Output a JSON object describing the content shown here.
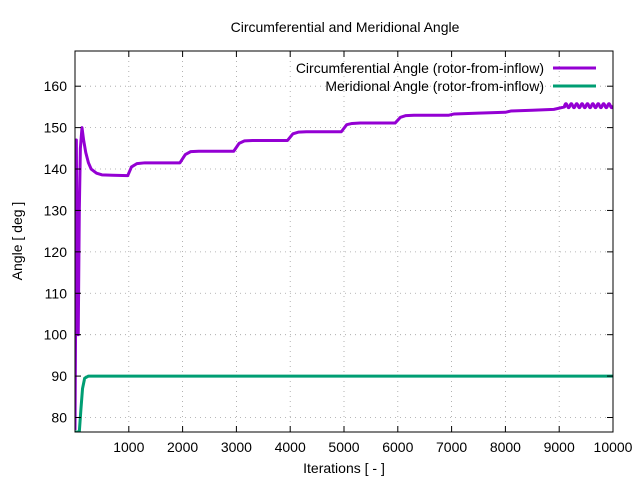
{
  "chart_data": {
    "type": "line",
    "title": "Circumferential and Meridional Angle",
    "xlabel": "Iterations [ - ]",
    "ylabel": "Angle [ deg ]",
    "xlim": [
      0,
      10000
    ],
    "ylim": [
      76.5,
      168.5
    ],
    "xticks": [
      1000,
      2000,
      3000,
      4000,
      5000,
      6000,
      7000,
      8000,
      9000,
      10000
    ],
    "yticks": [
      80,
      90,
      100,
      110,
      120,
      130,
      140,
      150,
      160
    ],
    "grid": true,
    "legend_position": "top-right",
    "series": [
      {
        "name": "Circumferential Angle (rotor-from-inflow)",
        "color": "#9400d3",
        "points": [
          [
            0,
            77
          ],
          [
            10,
            100
          ],
          [
            25,
            147
          ],
          [
            40,
            110
          ],
          [
            60,
            100
          ],
          [
            80,
            130
          ],
          [
            100,
            145
          ],
          [
            130,
            150
          ],
          [
            160,
            147
          ],
          [
            200,
            144
          ],
          [
            250,
            141.5
          ],
          [
            300,
            140
          ],
          [
            400,
            139
          ],
          [
            500,
            138.6
          ],
          [
            700,
            138.5
          ],
          [
            980,
            138.4
          ],
          [
            1050,
            140.5
          ],
          [
            1150,
            141.3
          ],
          [
            1300,
            141.5
          ],
          [
            1950,
            141.5
          ],
          [
            2050,
            143.5
          ],
          [
            2150,
            144.2
          ],
          [
            2300,
            144.3
          ],
          [
            2950,
            144.3
          ],
          [
            3050,
            146.2
          ],
          [
            3150,
            146.8
          ],
          [
            3300,
            146.9
          ],
          [
            3950,
            146.9
          ],
          [
            4050,
            148.5
          ],
          [
            4150,
            148.9
          ],
          [
            4300,
            149.0
          ],
          [
            4950,
            149.0
          ],
          [
            5050,
            150.7
          ],
          [
            5150,
            151.0
          ],
          [
            5300,
            151.1
          ],
          [
            5950,
            151.1
          ],
          [
            6050,
            152.5
          ],
          [
            6150,
            152.9
          ],
          [
            6300,
            153.0
          ],
          [
            6950,
            153.0
          ],
          [
            7050,
            153.3
          ],
          [
            7500,
            153.5
          ],
          [
            8000,
            153.7
          ],
          [
            8100,
            154.0
          ],
          [
            8500,
            154.2
          ],
          [
            8900,
            154.4
          ],
          [
            9100,
            155.0
          ]
        ],
        "oscillation": {
          "from": 9100,
          "to": 10000,
          "center": 155.3,
          "amplitude": 0.5,
          "period": 100
        }
      },
      {
        "name": "Meridional Angle (rotor-from-inflow)",
        "color": "#009e73",
        "points": [
          [
            0,
            76.5
          ],
          [
            80,
            76.5
          ],
          [
            110,
            82
          ],
          [
            140,
            87
          ],
          [
            180,
            89.5
          ],
          [
            250,
            90
          ],
          [
            10000,
            90
          ]
        ]
      }
    ]
  }
}
